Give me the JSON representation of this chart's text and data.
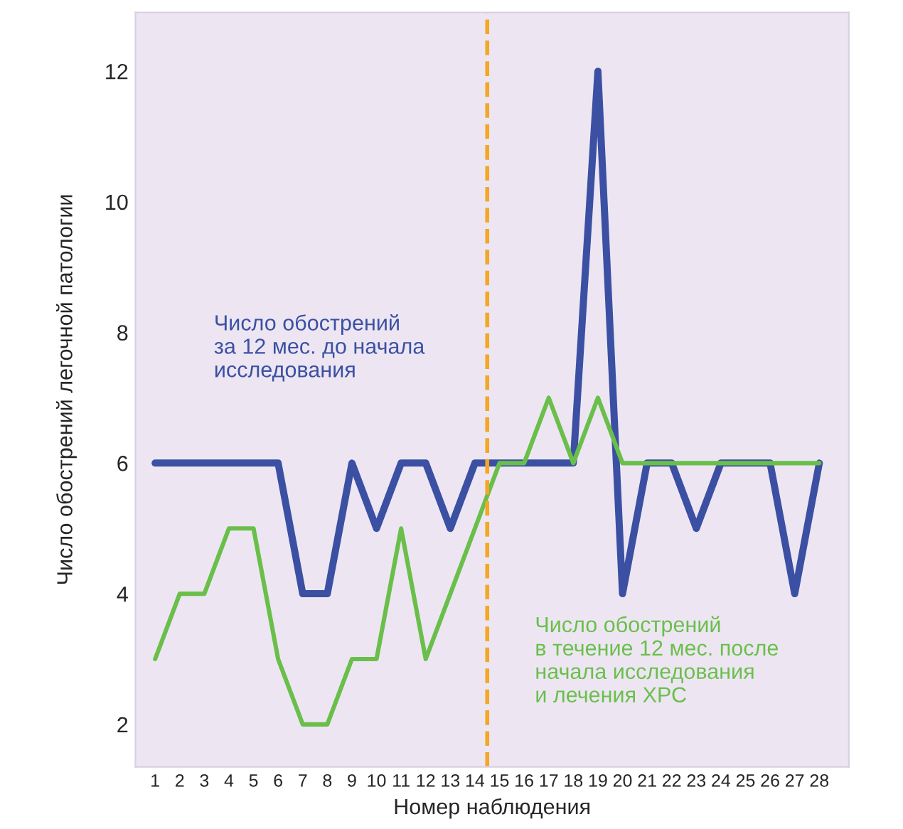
{
  "chart_data": {
    "type": "line",
    "xlabel": "Номер наблюдения",
    "ylabel": "Число обострений легочной патологии",
    "x": [
      1,
      2,
      3,
      4,
      5,
      6,
      7,
      8,
      9,
      10,
      11,
      12,
      13,
      14,
      15,
      16,
      17,
      18,
      19,
      20,
      21,
      22,
      23,
      24,
      25,
      26,
      27,
      28
    ],
    "series": [
      {
        "name": "Число обострений\nза 12 мес. до начала\nисследования",
        "color": "#3b50a3",
        "values": [
          6,
          6,
          6,
          6,
          6,
          6,
          4,
          4,
          6,
          5,
          6,
          6,
          5,
          6,
          6,
          6,
          6,
          6,
          12,
          4,
          6,
          6,
          5,
          6,
          6,
          6,
          4,
          6
        ]
      },
      {
        "name": "Число обострений\nв течение 12 мес. после\nначала исследования\nи лечения ХРС",
        "color": "#6abf4b",
        "values": [
          3,
          4,
          4,
          5,
          5,
          3,
          2,
          2,
          3,
          3,
          5,
          3,
          4,
          5,
          6,
          6,
          7,
          6,
          7,
          6,
          6,
          6,
          6,
          6,
          6,
          6,
          6,
          6
        ]
      }
    ],
    "xlim": [
      0.2,
      29.2
    ],
    "xticks": [
      1,
      2,
      3,
      4,
      5,
      6,
      7,
      8,
      9,
      10,
      11,
      12,
      13,
      14,
      15,
      16,
      17,
      18,
      19,
      20,
      21,
      22,
      23,
      24,
      25,
      26,
      27,
      28
    ],
    "ylim": [
      1.35,
      12.9
    ],
    "yticks": [
      2,
      4,
      6,
      8,
      10,
      12
    ],
    "ref_lines": [
      {
        "axis": "x",
        "value": 14.5,
        "label": null,
        "color": "#f5a623",
        "line_style": "dashed"
      }
    ],
    "grid": false,
    "legend": false,
    "marker": "none",
    "line_style": "solid"
  }
}
